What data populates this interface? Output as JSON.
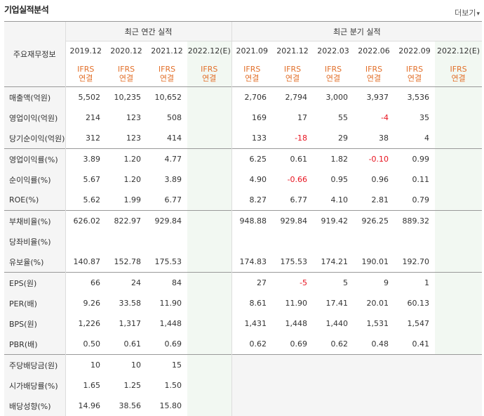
{
  "header": {
    "title": "기업실적분석",
    "more_label": "더보기",
    "more_arrow": "▾"
  },
  "table": {
    "corner_label": "주요재무정보",
    "group_annual": "최근 연간 실적",
    "group_quarter": "최근 분기 실적",
    "annual_periods": [
      "2019.12",
      "2020.12",
      "2021.12",
      "2022.12(E)"
    ],
    "quarter_periods": [
      "2021.09",
      "2021.12",
      "2022.03",
      "2022.06",
      "2022.09",
      "2022.12(E)"
    ],
    "basis_top": "IFRS",
    "basis_bottom": "연결",
    "rows": [
      {
        "label": "매출액(억원)",
        "annual": [
          "5,502",
          "10,235",
          "10,652",
          ""
        ],
        "quarter": [
          "2,706",
          "2,794",
          "3,000",
          "3,937",
          "3,536",
          ""
        ]
      },
      {
        "label": "영업이익(억원)",
        "annual": [
          "214",
          "123",
          "508",
          ""
        ],
        "quarter": [
          "169",
          "17",
          "55",
          "-4",
          "35",
          ""
        ]
      },
      {
        "label": "당기순이익(억원)",
        "annual": [
          "312",
          "123",
          "414",
          ""
        ],
        "quarter": [
          "133",
          "-18",
          "29",
          "38",
          "4",
          ""
        ]
      },
      {
        "label": "영업이익률(%)",
        "annual": [
          "3.89",
          "1.20",
          "4.77",
          ""
        ],
        "quarter": [
          "6.25",
          "0.61",
          "1.82",
          "-0.10",
          "0.99",
          ""
        ]
      },
      {
        "label": "순이익률(%)",
        "annual": [
          "5.67",
          "1.20",
          "3.89",
          ""
        ],
        "quarter": [
          "4.90",
          "-0.66",
          "0.95",
          "0.96",
          "0.11",
          ""
        ]
      },
      {
        "label": "ROE(%)",
        "annual": [
          "5.62",
          "1.99",
          "6.77",
          ""
        ],
        "quarter": [
          "8.27",
          "6.77",
          "4.10",
          "2.81",
          "0.79",
          ""
        ]
      },
      {
        "label": "부채비율(%)",
        "annual": [
          "626.02",
          "822.97",
          "929.84",
          ""
        ],
        "quarter": [
          "948.88",
          "929.84",
          "919.42",
          "926.25",
          "889.32",
          ""
        ]
      },
      {
        "label": "당좌비율(%)",
        "annual": [
          "",
          "",
          "",
          ""
        ],
        "quarter": [
          "",
          "",
          "",
          "",
          "",
          ""
        ]
      },
      {
        "label": "유보율(%)",
        "annual": [
          "140.87",
          "152.78",
          "175.53",
          ""
        ],
        "quarter": [
          "174.83",
          "175.53",
          "174.21",
          "190.01",
          "192.70",
          ""
        ]
      },
      {
        "label": "EPS(원)",
        "annual": [
          "66",
          "24",
          "84",
          ""
        ],
        "quarter": [
          "27",
          "-5",
          "5",
          "9",
          "1",
          ""
        ]
      },
      {
        "label": "PER(배)",
        "annual": [
          "9.26",
          "33.58",
          "11.90",
          ""
        ],
        "quarter": [
          "8.61",
          "11.90",
          "17.41",
          "20.01",
          "60.13",
          ""
        ]
      },
      {
        "label": "BPS(원)",
        "annual": [
          "1,226",
          "1,317",
          "1,448",
          ""
        ],
        "quarter": [
          "1,431",
          "1,448",
          "1,440",
          "1,531",
          "1,547",
          ""
        ]
      },
      {
        "label": "PBR(배)",
        "annual": [
          "0.50",
          "0.61",
          "0.69",
          ""
        ],
        "quarter": [
          "0.62",
          "0.69",
          "0.62",
          "0.48",
          "0.41",
          ""
        ]
      },
      {
        "label": "주당배당금(원)",
        "annual": [
          "10",
          "10",
          "15",
          ""
        ],
        "quarter": null
      },
      {
        "label": "시가배당률(%)",
        "annual": [
          "1.65",
          "1.25",
          "1.50",
          ""
        ],
        "quarter": null
      },
      {
        "label": "배당성향(%)",
        "annual": [
          "14.96",
          "38.56",
          "15.80",
          ""
        ],
        "quarter": null
      }
    ]
  },
  "colors": {
    "negative": "#e8121f",
    "basis": "#e2702b",
    "estimate_bg": "#f2f8f2",
    "header_bg": "#f5f5f5"
  }
}
